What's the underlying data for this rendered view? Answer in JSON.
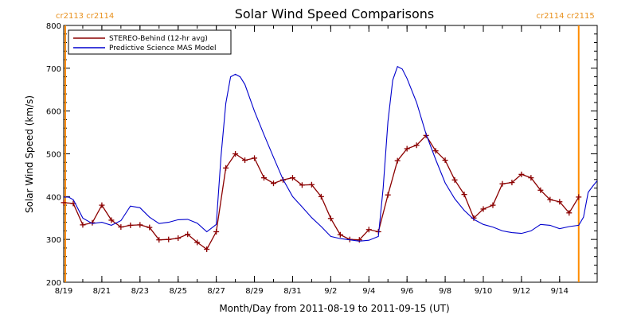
{
  "chart_data": {
    "type": "line",
    "title": "Solar Wind Speed Comparisons",
    "xlabel": "Month/Day from 2011-08-19 to 2011-09-15 (UT)",
    "ylabel": "Solar Wind Speed (km/s)",
    "xlim": [
      "2011-08-19",
      "2011-09-15"
    ],
    "ylim": [
      200,
      800
    ],
    "y_ticks": [
      200,
      300,
      400,
      500,
      600,
      700,
      800
    ],
    "x_ticks": [
      {
        "date": "2011-08-19",
        "label": "8/19"
      },
      {
        "date": "2011-08-21",
        "label": "8/21"
      },
      {
        "date": "2011-08-23",
        "label": "8/23"
      },
      {
        "date": "2011-08-25",
        "label": "8/25"
      },
      {
        "date": "2011-08-27",
        "label": "8/27"
      },
      {
        "date": "2011-08-29",
        "label": "8/29"
      },
      {
        "date": "2011-08-31",
        "label": "8/31"
      },
      {
        "date": "2011-09-02",
        "label": "9/2"
      },
      {
        "date": "2011-09-04",
        "label": "9/4"
      },
      {
        "date": "2011-09-06",
        "label": "9/6"
      },
      {
        "date": "2011-09-08",
        "label": "9/8"
      },
      {
        "date": "2011-09-10",
        "label": "9/10"
      },
      {
        "date": "2011-09-12",
        "label": "9/12"
      },
      {
        "date": "2011-09-14",
        "label": "9/14"
      }
    ],
    "grid": false,
    "legend_position": "top-left",
    "carrington_markers": [
      {
        "date": "2011-08-19T02:00",
        "label": "cr2113 cr2114",
        "label_side": "left",
        "color": "#ff8c00"
      },
      {
        "date": "2011-09-15T00:00",
        "label": "cr2114 cr2115",
        "label_side": "right",
        "color": "#ff8c00"
      }
    ],
    "series": [
      {
        "name": "STEREO-Behind (12-hr avg)",
        "color": "#8b0000",
        "marker": "+",
        "points": [
          [
            "2011-08-19T00:00",
            386
          ],
          [
            "2011-08-19T12:00",
            384
          ],
          [
            "2011-08-20T00:00",
            334
          ],
          [
            "2011-08-20T12:00",
            339
          ],
          [
            "2011-08-21T00:00",
            380
          ],
          [
            "2011-08-21T12:00",
            345
          ],
          [
            "2011-08-22T00:00",
            329
          ],
          [
            "2011-08-22T12:00",
            333
          ],
          [
            "2011-08-23T00:00",
            334
          ],
          [
            "2011-08-23T12:00",
            328
          ],
          [
            "2011-08-24T00:00",
            299
          ],
          [
            "2011-08-24T12:00",
            300
          ],
          [
            "2011-08-25T00:00",
            303
          ],
          [
            "2011-08-25T12:00",
            312
          ],
          [
            "2011-08-26T00:00",
            293
          ],
          [
            "2011-08-26T12:00",
            277
          ],
          [
            "2011-08-27T00:00",
            318
          ],
          [
            "2011-08-27T12:00",
            467
          ],
          [
            "2011-08-28T00:00",
            500
          ],
          [
            "2011-08-28T12:00",
            485
          ],
          [
            "2011-08-29T00:00",
            490
          ],
          [
            "2011-08-29T12:00",
            444
          ],
          [
            "2011-08-30T00:00",
            431
          ],
          [
            "2011-08-30T12:00",
            439
          ],
          [
            "2011-08-31T00:00",
            444
          ],
          [
            "2011-08-31T12:00",
            427
          ],
          [
            "2011-09-01T00:00",
            428
          ],
          [
            "2011-09-01T12:00",
            400
          ],
          [
            "2011-09-02T00:00",
            349
          ],
          [
            "2011-09-02T12:00",
            311
          ],
          [
            "2011-09-03T00:00",
            300
          ],
          [
            "2011-09-03T12:00",
            299
          ],
          [
            "2011-09-04T00:00",
            323
          ],
          [
            "2011-09-04T12:00",
            318
          ],
          [
            "2011-09-05T00:00",
            404
          ],
          [
            "2011-09-05T12:00",
            484
          ],
          [
            "2011-09-06T00:00",
            512
          ],
          [
            "2011-09-06T12:00",
            520
          ],
          [
            "2011-09-07T00:00",
            543
          ],
          [
            "2011-09-07T12:00",
            507
          ],
          [
            "2011-09-08T00:00",
            485
          ],
          [
            "2011-09-08T12:00",
            439
          ],
          [
            "2011-09-09T00:00",
            405
          ],
          [
            "2011-09-09T12:00",
            350
          ],
          [
            "2011-09-10T00:00",
            371
          ],
          [
            "2011-09-10T12:00",
            380
          ],
          [
            "2011-09-11T00:00",
            430
          ],
          [
            "2011-09-11T12:00",
            433
          ],
          [
            "2011-09-12T00:00",
            452
          ],
          [
            "2011-09-12T12:00",
            444
          ],
          [
            "2011-09-13T00:00",
            415
          ],
          [
            "2011-09-13T12:00",
            393
          ],
          [
            "2011-09-14T00:00",
            388
          ],
          [
            "2011-09-14T12:00",
            362
          ],
          [
            "2011-09-15T00:00",
            399
          ]
        ]
      },
      {
        "name": "Predictive Science MAS Model",
        "color": "#0000cd",
        "marker": "none",
        "points": [
          [
            "2011-08-19T00:00",
            399
          ],
          [
            "2011-08-19T06:00",
            399
          ],
          [
            "2011-08-19T12:00",
            393
          ],
          [
            "2011-08-20T00:00",
            350
          ],
          [
            "2011-08-20T12:00",
            337
          ],
          [
            "2011-08-21T00:00",
            340
          ],
          [
            "2011-08-21T12:00",
            333
          ],
          [
            "2011-08-22T00:00",
            344
          ],
          [
            "2011-08-22T12:00",
            378
          ],
          [
            "2011-08-23T00:00",
            374
          ],
          [
            "2011-08-23T12:00",
            352
          ],
          [
            "2011-08-24T00:00",
            337
          ],
          [
            "2011-08-24T12:00",
            340
          ],
          [
            "2011-08-25T00:00",
            346
          ],
          [
            "2011-08-25T12:00",
            347
          ],
          [
            "2011-08-26T00:00",
            338
          ],
          [
            "2011-08-26T12:00",
            318
          ],
          [
            "2011-08-27T00:00",
            335
          ],
          [
            "2011-08-27T06:00",
            495
          ],
          [
            "2011-08-27T12:00",
            618
          ],
          [
            "2011-08-27T18:00",
            680
          ],
          [
            "2011-08-28T00:00",
            686
          ],
          [
            "2011-08-28T06:00",
            680
          ],
          [
            "2011-08-28T12:00",
            662
          ],
          [
            "2011-08-29T00:00",
            600
          ],
          [
            "2011-08-29T12:00",
            545
          ],
          [
            "2011-08-30T00:00",
            492
          ],
          [
            "2011-08-30T12:00",
            440
          ],
          [
            "2011-08-31T00:00",
            400
          ],
          [
            "2011-08-31T12:00",
            376
          ],
          [
            "2011-09-01T00:00",
            351
          ],
          [
            "2011-09-01T12:00",
            330
          ],
          [
            "2011-09-02T00:00",
            307
          ],
          [
            "2011-09-02T12:00",
            302
          ],
          [
            "2011-09-03T00:00",
            299
          ],
          [
            "2011-09-03T12:00",
            296
          ],
          [
            "2011-09-04T00:00",
            298
          ],
          [
            "2011-09-04T12:00",
            307
          ],
          [
            "2011-09-04T18:00",
            420
          ],
          [
            "2011-09-05T00:00",
            575
          ],
          [
            "2011-09-05T06:00",
            672
          ],
          [
            "2011-09-05T12:00",
            704
          ],
          [
            "2011-09-05T18:00",
            698
          ],
          [
            "2011-09-06T00:00",
            676
          ],
          [
            "2011-09-06T12:00",
            620
          ],
          [
            "2011-09-07T00:00",
            546
          ],
          [
            "2011-09-07T12:00",
            487
          ],
          [
            "2011-09-08T00:00",
            432
          ],
          [
            "2011-09-08T12:00",
            395
          ],
          [
            "2011-09-09T00:00",
            368
          ],
          [
            "2011-09-09T12:00",
            347
          ],
          [
            "2011-09-10T00:00",
            335
          ],
          [
            "2011-09-10T12:00",
            329
          ],
          [
            "2011-09-11T00:00",
            320
          ],
          [
            "2011-09-11T12:00",
            316
          ],
          [
            "2011-09-12T00:00",
            314
          ],
          [
            "2011-09-12T12:00",
            320
          ],
          [
            "2011-09-13T00:00",
            335
          ],
          [
            "2011-09-13T12:00",
            333
          ],
          [
            "2011-09-14T00:00",
            325
          ],
          [
            "2011-09-14T12:00",
            330
          ],
          [
            "2011-09-15T00:00",
            333
          ],
          [
            "2011-09-15T06:00",
            352
          ],
          [
            "2011-09-15T12:00",
            410
          ],
          [
            "2011-09-15T18:00",
            425
          ],
          [
            "2011-09-16T00:00",
            437
          ]
        ]
      }
    ]
  }
}
